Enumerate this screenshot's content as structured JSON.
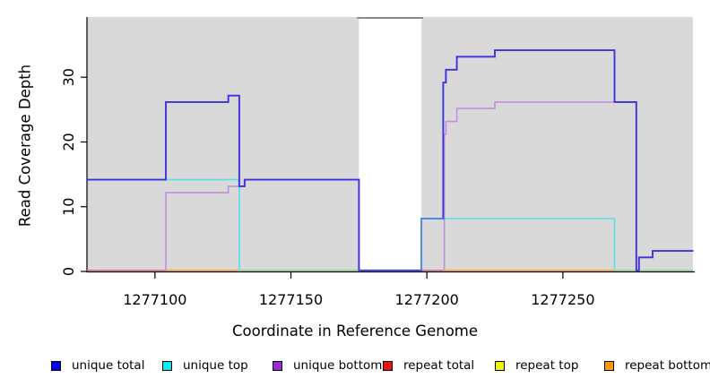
{
  "chart_data": {
    "type": "line",
    "subtype": "step-coverage",
    "title": "",
    "xlabel": "Coordinate in Reference Genome",
    "ylabel": "Read Coverage Depth",
    "xlim": [
      1277075,
      1277298.5
    ],
    "ylim": [
      0,
      39.3
    ],
    "x_ticks": [
      1277100,
      1277150,
      1277200,
      1277250
    ],
    "y_ticks": [
      0,
      10,
      20,
      30
    ],
    "grid": false,
    "legend_position": "bottom",
    "colors": {
      "plot_background": "#ffffff",
      "shaded_region": "#d9d9d9",
      "gap_top_border": "#8a8a8a",
      "axis": "#000000",
      "text": "#000000"
    },
    "shaded_regions": [
      {
        "name": "covered-region-left",
        "x0": 1277075,
        "x1": 1277175
      },
      {
        "name": "covered-region-right",
        "x0": 1277198,
        "x1": 1277297.8
      }
    ],
    "gap_region": {
      "name": "uncovered-gap",
      "x0": 1277175,
      "x1": 1277198
    },
    "series": [
      {
        "name": "unique total",
        "color": "#3c32e0",
        "width": 1.9,
        "z": 4,
        "paths": [
          [
            [
              1277075,
              14
            ],
            [
              1277104,
              14
            ],
            [
              1277104,
              26
            ],
            [
              1277127,
              26
            ],
            [
              1277127,
              27
            ],
            [
              1277131,
              27
            ],
            [
              1277131,
              13
            ],
            [
              1277133,
              13
            ],
            [
              1277133,
              14
            ],
            [
              1277175,
              14
            ],
            [
              1277175,
              0
            ],
            [
              1277198,
              0
            ],
            [
              1277198,
              8
            ],
            [
              1277206,
              8
            ],
            [
              1277206,
              29
            ],
            [
              1277207,
              29
            ],
            [
              1277207,
              31
            ],
            [
              1277211,
              31
            ],
            [
              1277211,
              33
            ],
            [
              1277225,
              33
            ],
            [
              1277225,
              34
            ],
            [
              1277269,
              34
            ],
            [
              1277269,
              26
            ],
            [
              1277277,
              26
            ],
            [
              1277277,
              0
            ],
            [
              1277278,
              0
            ],
            [
              1277278,
              2
            ],
            [
              1277283,
              2
            ],
            [
              1277283,
              3
            ],
            [
              1277298,
              3
            ]
          ]
        ]
      },
      {
        "name": "unique top",
        "color": "#55e0ec",
        "width": 1.6,
        "z": 2,
        "paths": [
          [
            [
              1277075,
              14
            ],
            [
              1277131,
              14
            ],
            [
              1277131,
              0
            ]
          ],
          [
            [
              1277206,
              8
            ],
            [
              1277269,
              8
            ],
            [
              1277269,
              0
            ]
          ]
        ]
      },
      {
        "name": "unique top over unique total overlap",
        "color": "#4f93ea",
        "width": 1.8,
        "z": 5,
        "paths": [
          [
            [
              1277198,
              0
            ],
            [
              1277198,
              8
            ],
            [
              1277206,
              8
            ]
          ]
        ]
      },
      {
        "name": "unique bottom",
        "color": "#c08fe0",
        "width": 1.6,
        "z": 3,
        "paths": [
          [
            [
              1277104,
              0
            ],
            [
              1277104,
              12
            ],
            [
              1277127,
              12
            ],
            [
              1277127,
              13
            ],
            [
              1277133,
              13
            ],
            [
              1277133,
              14
            ],
            [
              1277175,
              14
            ],
            [
              1277175,
              0
            ]
          ],
          [
            [
              1277206.4,
              0
            ],
            [
              1277206.4,
              21
            ],
            [
              1277207,
              21
            ],
            [
              1277207,
              23
            ],
            [
              1277211,
              23
            ],
            [
              1277211,
              25
            ],
            [
              1277225,
              25
            ],
            [
              1277225,
              26
            ],
            [
              1277277,
              26
            ],
            [
              1277277,
              0
            ]
          ]
        ]
      }
    ],
    "zero_line_segments": [
      {
        "name": "zero-segment-pink-left",
        "color": "#d76a9e",
        "x0": 1277075,
        "x1": 1277104
      },
      {
        "name": "zero-segment-orange-left",
        "color": "#ffa033",
        "x0": 1277104,
        "x1": 1277131
      },
      {
        "name": "zero-segment-green-left",
        "color": "#8fd88f",
        "x0": 1277131,
        "x1": 1277175
      },
      {
        "name": "zero-segment-pink-right",
        "color": "#d76a9e",
        "x0": 1277198,
        "x1": 1277206
      },
      {
        "name": "zero-segment-orange-right",
        "color": "#ffa033",
        "x0": 1277206,
        "x1": 1277269
      },
      {
        "name": "zero-segment-green-right",
        "color": "#8fd88f",
        "x0": 1277269,
        "x1": 1277297.8
      }
    ],
    "legend": [
      {
        "label": "unique total",
        "color": "#0202f0"
      },
      {
        "label": "unique top",
        "color": "#00eeee"
      },
      {
        "label": "unique bottom",
        "color": "#9a2fd1"
      },
      {
        "label": "repeat total",
        "color": "#ee1111"
      },
      {
        "label": "repeat top",
        "color": "#f2f200"
      },
      {
        "label": "repeat bottom",
        "color": "#ff9900"
      }
    ]
  }
}
